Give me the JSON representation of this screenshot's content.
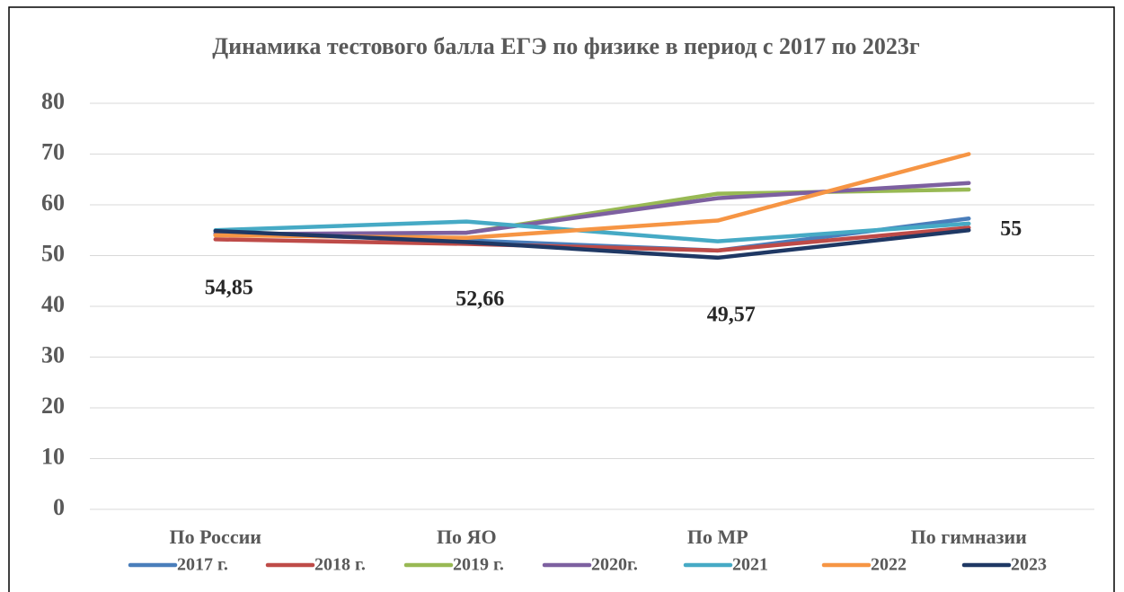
{
  "chart_data": {
    "type": "line",
    "title": "Динамика тестового балла ЕГЭ по физике  в период с  2017 по 2023г",
    "categories": [
      "По России",
      "По ЯО",
      "По МР",
      "По гимназии"
    ],
    "series": [
      {
        "name": "2017 г.",
        "color": "#4a7ebb",
        "values": [
          54.4,
          53.0,
          51.0,
          57.3
        ]
      },
      {
        "name": "2018 г.",
        "color": "#be4b48",
        "values": [
          53.2,
          52.3,
          51.0,
          55.5
        ]
      },
      {
        "name": "2019 г.",
        "color": "#98b954",
        "values": [
          54.0,
          54.5,
          62.2,
          63.0
        ]
      },
      {
        "name": "2020г.",
        "color": "#7d60a0",
        "values": [
          54.2,
          54.5,
          61.3,
          64.3
        ]
      },
      {
        "name": "2021",
        "color": "#46aac5",
        "values": [
          55.0,
          56.7,
          52.8,
          56.3
        ]
      },
      {
        "name": "2022",
        "color": "#f69544",
        "values": [
          54.0,
          53.5,
          56.9,
          70.0
        ]
      },
      {
        "name": "2023",
        "color": "#1f3864",
        "values": [
          54.85,
          52.66,
          49.57,
          55
        ],
        "value_labels": [
          "54,85",
          "52,66",
          "49,57",
          "55"
        ]
      }
    ],
    "ylim": [
      0,
      80
    ],
    "yticks": [
      0,
      10,
      20,
      30,
      40,
      50,
      60,
      70,
      80
    ],
    "grid": true
  }
}
